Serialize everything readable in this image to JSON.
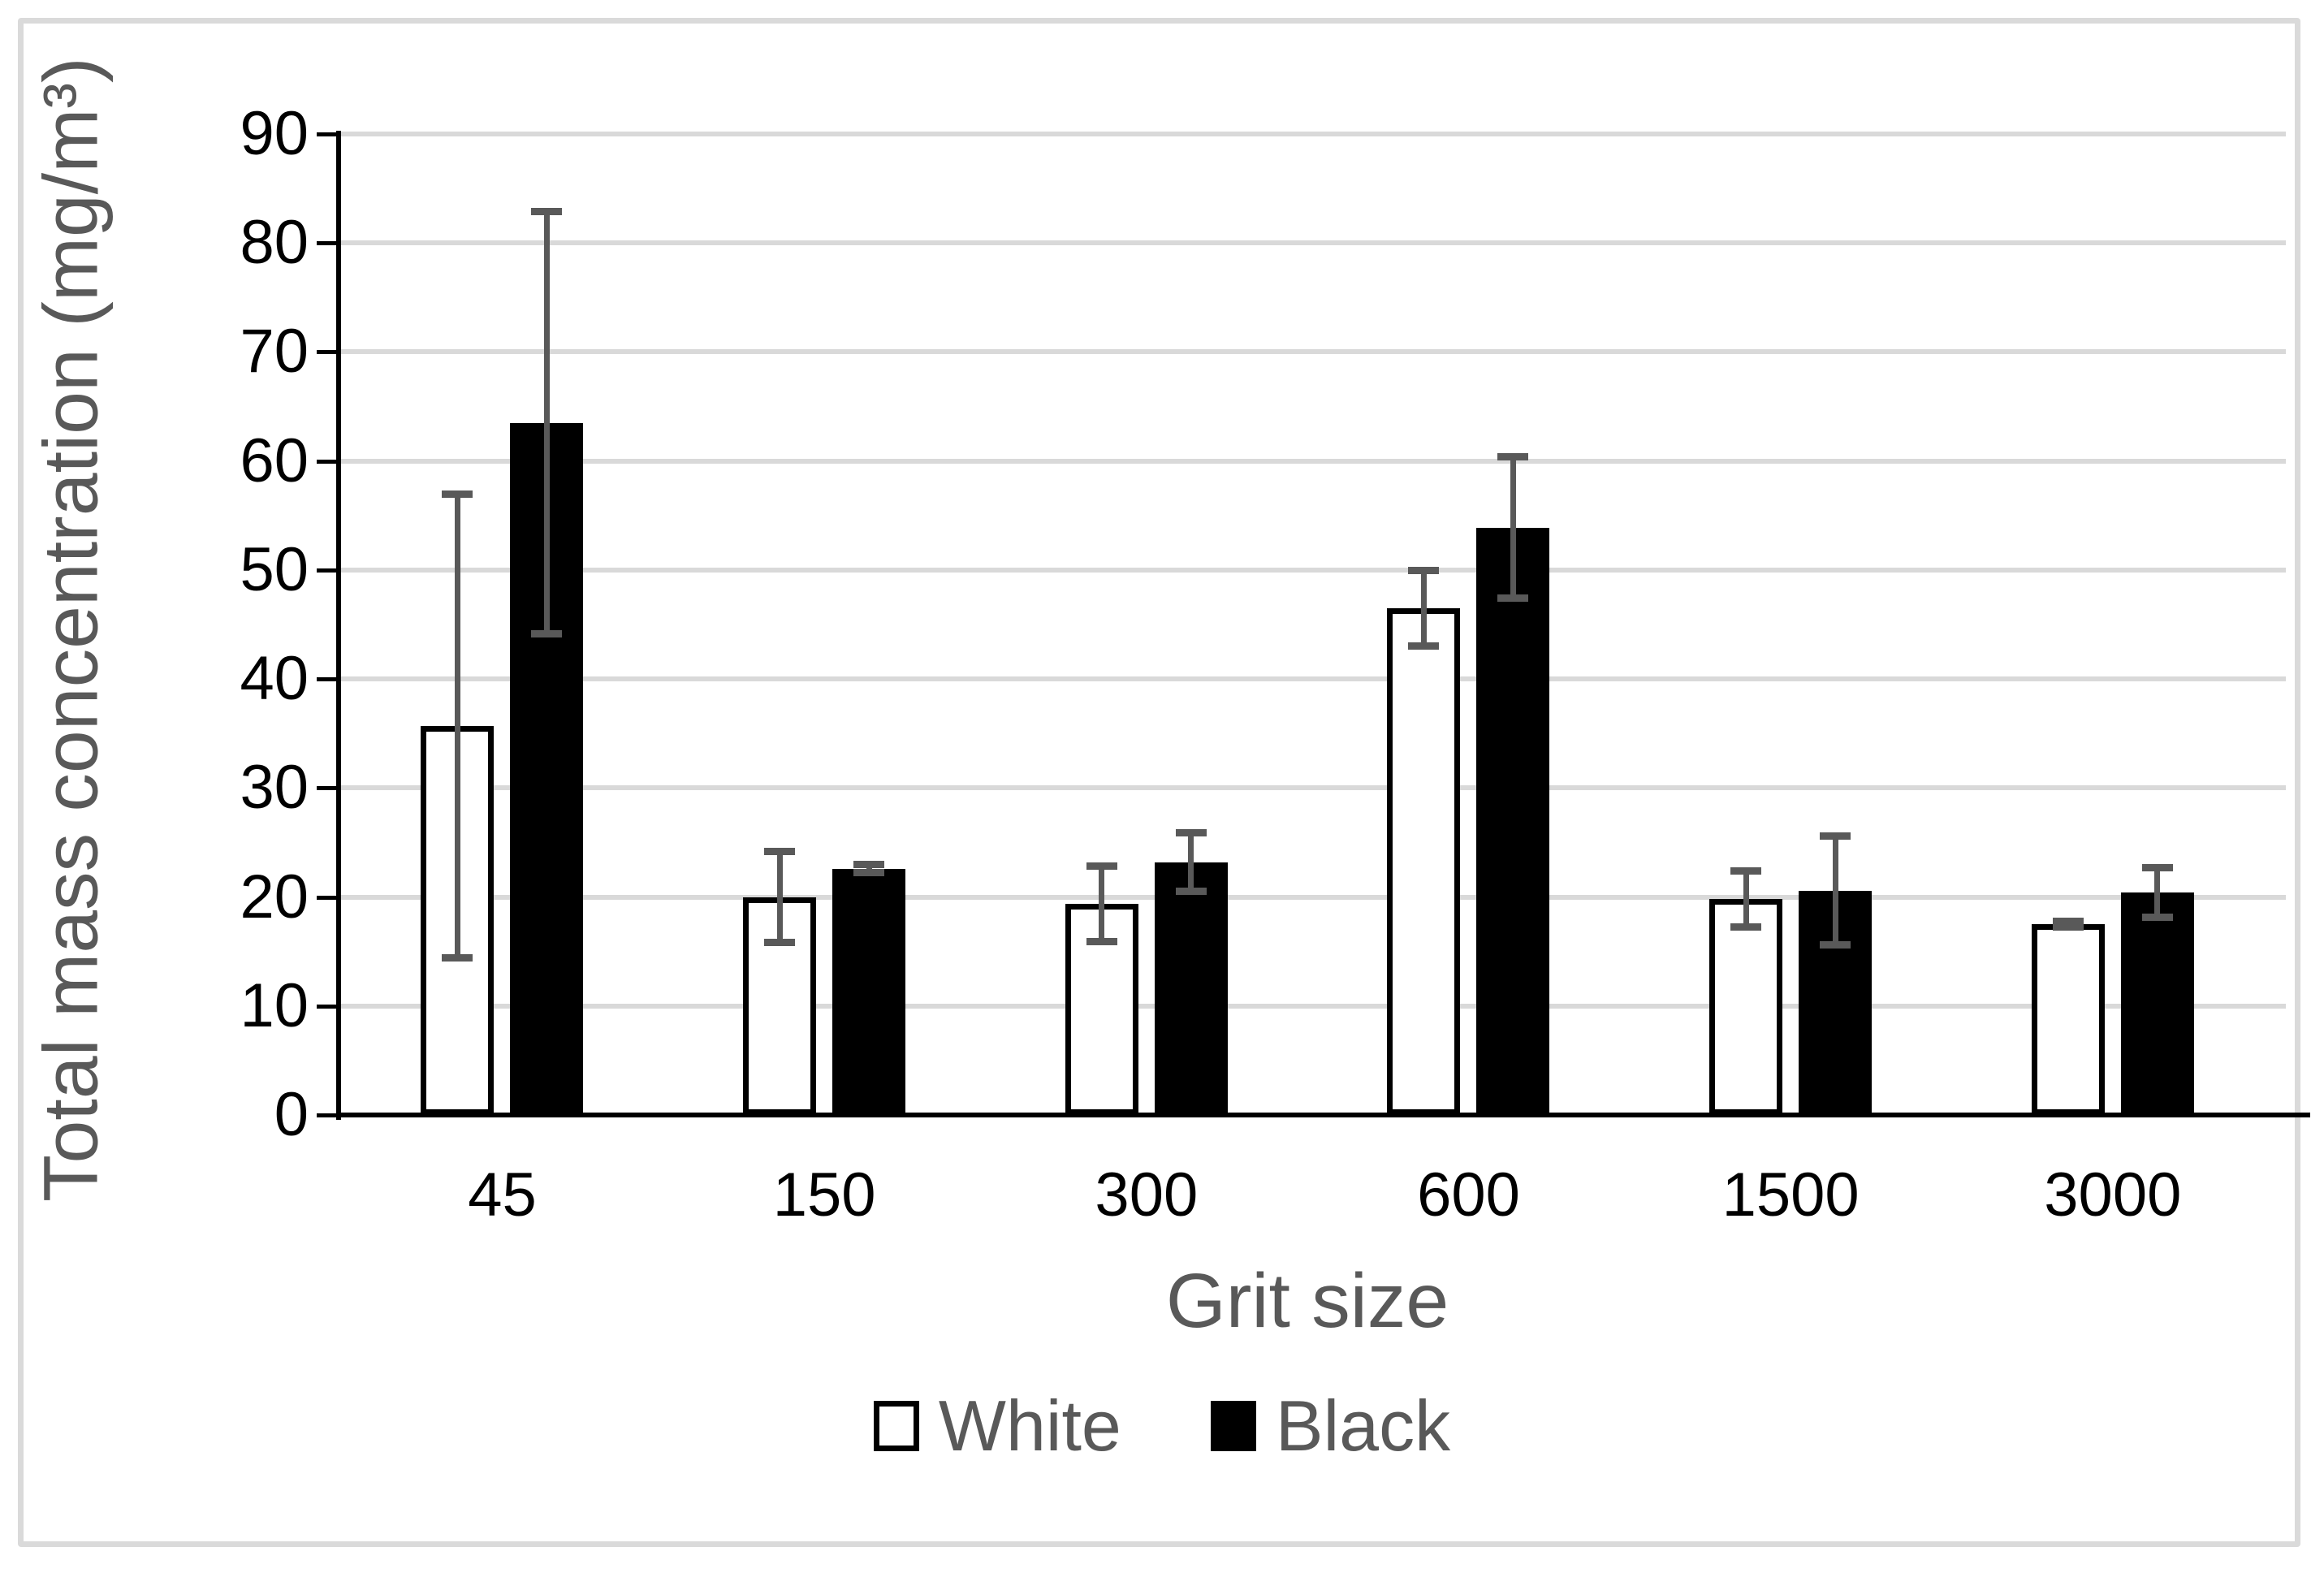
{
  "chart_data": {
    "type": "bar",
    "categories": [
      "45",
      "150",
      "300",
      "600",
      "1500",
      "3000"
    ],
    "series": [
      {
        "name": "White",
        "fill": "#FFFFFF",
        "border": "#000000",
        "values": [
          35.7,
          20.0,
          19.4,
          46.5,
          19.8,
          17.5
        ],
        "errors": [
          21.3,
          4.2,
          3.5,
          3.5,
          2.6,
          0.3
        ]
      },
      {
        "name": "Black",
        "fill": "#000000",
        "border": "#000000",
        "values": [
          63.5,
          22.6,
          23.2,
          53.9,
          20.6,
          20.4
        ],
        "errors": [
          19.4,
          0.4,
          2.7,
          6.5,
          5.0,
          2.3
        ]
      }
    ],
    "xlabel": "Grit size",
    "ylabel": "Total mass concentration (mg/m³)",
    "ylim": [
      0,
      90
    ],
    "ytick_step": 10,
    "yticks": [
      "0",
      "10",
      "20",
      "30",
      "40",
      "50",
      "60",
      "70",
      "80",
      "90"
    ],
    "grid": true,
    "legend_position": "bottom-center",
    "colors": {
      "gridline": "#D9D9D9",
      "axis_line": "#000000",
      "tick_label": "#000000",
      "axis_title": "#595959",
      "error_bar": "#595959",
      "chart_border": "#DADADA"
    }
  }
}
